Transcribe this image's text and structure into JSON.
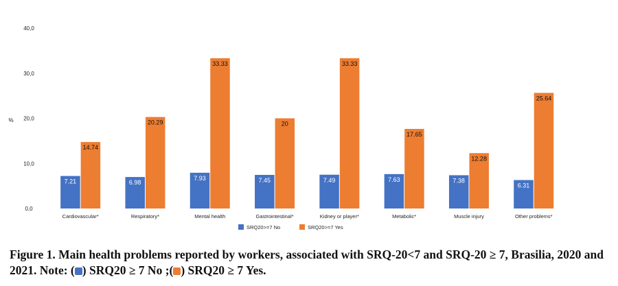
{
  "chart_data": {
    "type": "bar",
    "ylabel": "%",
    "ylim": [
      0,
      40
    ],
    "yticks": [
      "0,0",
      "10,0",
      "20,0",
      "30,0",
      "40,0"
    ],
    "categories": [
      "Cardiovascular*",
      "Respiratory*",
      "Mental health",
      "Gastrointestinal*",
      "Kidney or player*",
      "Metabolic*",
      "Muscle injury",
      "Other problems*"
    ],
    "series": [
      {
        "name": "SRQ20>=7 No",
        "color": "#4472c4",
        "values": [
          7.21,
          6.98,
          7.93,
          7.45,
          7.49,
          7.63,
          7.38,
          6.31
        ],
        "labels": [
          "7.21",
          "6.98",
          "7.93",
          "7.45",
          "7.49",
          "7.63",
          "7.38",
          "6.31"
        ]
      },
      {
        "name": "SRQ20>=7 Yes",
        "color": "#ed7d31",
        "values": [
          14.74,
          20.29,
          33.33,
          20,
          33.33,
          17.65,
          12.28,
          25.64
        ],
        "labels": [
          "14.74",
          "20.29",
          "33.33",
          "20",
          "33.33",
          "17.65",
          "12.28",
          "25.64"
        ]
      }
    ],
    "legend_position": "bottom",
    "grid": false
  },
  "caption": {
    "part1": "Figure 1.  Main health problems reported by workers, associated with SRQ-20<7 and SRQ-20 ≥ 7, Brasilia, 2020 and 2021. Note: (",
    "part2": ") SRQ20 ≥ 7 No ;(",
    "part3": ") SRQ20 ≥ 7 Yes."
  }
}
